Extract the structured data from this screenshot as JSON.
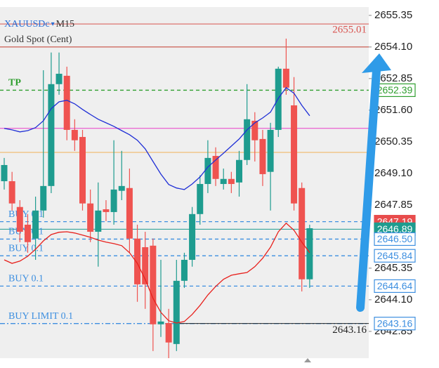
{
  "chart_data": {
    "type": "candlestick",
    "symbol": "XAUUSDc",
    "timeframe": "M15",
    "subtitle": "Gold Spot (Cent)",
    "up_color": "#1e9c8f",
    "down_color": "#ef5350",
    "open": [
      2648.79,
      2648.79,
      2647.77,
      2647.07,
      2646.52,
      2647.63,
      2648.6,
      2652.63,
      2652.96,
      2650.82,
      2650.54,
      2647.91,
      2646.79,
      2647.68,
      2647.57,
      2648.41,
      2648.52,
      2646.52,
      2646.18,
      2646.24,
      2643.13,
      2643.18,
      2642.35,
      2644.85,
      2645.68,
      2647.49,
      2648.68,
      2649.79,
      2648.68,
      2648.88,
      2648.74,
      2649.63,
      2651.18,
      2650.46,
      2649.16,
      2650.82,
      2653.24,
      2651.79,
      2648.52,
      2644.91
    ],
    "high": [
      2649.71,
      2649.16,
      2648.04,
      2647.49,
      2648.18,
      2653.18,
      2653.88,
      2653.88,
      2653.32,
      2651.24,
      2650.82,
      2648.46,
      2648.74,
      2648.04,
      2650.41,
      2649.99,
      2649.29,
      2647.07,
      2646.79,
      2646.52,
      2645.68,
      2643.74,
      2645.68,
      2645.96,
      2647.77,
      2649.02,
      2650.41,
      2650.13,
      2649.29,
      2649.16,
      2649.99,
      2652.63,
      2651.52,
      2650.82,
      2651.1,
      2653.32,
      2654.43,
      2652.91,
      2648.74,
      2647.07
    ],
    "low": [
      2648.46,
      2647.63,
      2646.38,
      2645.96,
      2645.68,
      2647.35,
      2648.32,
      2652.21,
      2650.41,
      2649.99,
      2647.63,
      2646.38,
      2645.41,
      2647.21,
      2647.07,
      2648.04,
      2645.96,
      2644.02,
      2643.74,
      2642.07,
      2642.63,
      2641.79,
      2642.07,
      2644.57,
      2645.41,
      2647.07,
      2648.32,
      2648.6,
      2648.46,
      2648.32,
      2648.18,
      2649.43,
      2649.57,
      2648.6,
      2647.63,
      2650.54,
      2652.21,
      2647.63,
      2644.43,
      2644.57
    ],
    "close": [
      2649.43,
      2647.91,
      2646.79,
      2646.38,
      2647.63,
      2648.6,
      2652.63,
      2653.04,
      2650.82,
      2650.41,
      2647.91,
      2646.79,
      2647.63,
      2647.57,
      2648.46,
      2648.6,
      2646.52,
      2644.71,
      2644.71,
      2643.13,
      2643.24,
      2642.41,
      2644.85,
      2645.68,
      2647.49,
      2648.68,
      2649.71,
      2648.88,
      2648.88,
      2648.68,
      2649.63,
      2651.24,
      2650.41,
      2649.07,
      2650.82,
      2653.24,
      2652.49,
      2647.91,
      2644.91,
      2646.93
    ],
    "series": [
      {
        "color": "#1f2fd6",
        "values": [
          2650.88,
          2650.82,
          2650.74,
          2650.79,
          2650.91,
          2651.18,
          2651.66,
          2651.93,
          2651.99,
          2651.85,
          2651.63,
          2651.43,
          2651.24,
          2651.1,
          2650.96,
          2650.79,
          2650.63,
          2650.41,
          2650.07,
          2649.57,
          2649.07,
          2648.66,
          2648.52,
          2648.46,
          2648.68,
          2648.96,
          2649.35,
          2649.63,
          2649.9,
          2650.18,
          2650.46,
          2650.82,
          2651.1,
          2651.29,
          2651.52,
          2652.07,
          2652.49,
          2652.27,
          2651.79,
          2651.38
        ]
      },
      {
        "color": "#e8201c",
        "values": [
          2645.68,
          2645.54,
          2645.63,
          2645.82,
          2646.1,
          2646.43,
          2646.68,
          2646.77,
          2646.79,
          2646.74,
          2646.66,
          2646.57,
          2646.46,
          2646.38,
          2646.32,
          2646.24,
          2645.96,
          2645.54,
          2644.91,
          2644.16,
          2643.6,
          2643.27,
          2643.18,
          2643.24,
          2643.52,
          2643.88,
          2644.29,
          2644.63,
          2644.91,
          2645.07,
          2645.13,
          2645.18,
          2645.41,
          2645.74,
          2646.18,
          2646.79,
          2647.13,
          2646.85,
          2646.38,
          2645.96
        ]
      }
    ],
    "lines": [
      {
        "value": 2655.01,
        "color": "#d9534f",
        "style": "solid",
        "tag": "text"
      },
      {
        "value": 2654.1,
        "color": "#c0392b",
        "style": "solid"
      },
      {
        "name": "TP",
        "value": 2652.39,
        "color": "#2e9e2e",
        "style": "dashed",
        "tag": "box"
      },
      {
        "value": 2650.88,
        "color": "#e83ec8",
        "style": "solid"
      },
      {
        "value": 2649.93,
        "color": "#f2b257",
        "style": "solid"
      },
      {
        "name": "BUY 0.1",
        "value": 2647.19,
        "color": "#3d8fe0",
        "style": "dashed",
        "tag": "fill",
        "tag_color": "#e84c4c"
      },
      {
        "value": 2646.89,
        "color": "#1e9c8f",
        "style": "solid",
        "tag": "fill",
        "tag_color": "#1e9c8f"
      },
      {
        "name": "BUY 0.1",
        "value": 2646.5,
        "value_label": "2646.50",
        "color": "#3d8fe0",
        "style": "dashed",
        "tag": "box"
      },
      {
        "name": "BUY 0.1",
        "value": 2645.84,
        "color": "#3d8fe0",
        "style": "dashed",
        "tag": "box"
      },
      {
        "name": "BUY 0.1",
        "value": 2644.64,
        "color": "#3d8fe0",
        "style": "dashed",
        "tag": "box"
      },
      {
        "name": "BUY LIMIT 0.1",
        "value": 2643.16,
        "color": "#3d8fe0",
        "style": "dashdot",
        "tag": "box"
      },
      {
        "value": 2643.16,
        "color": "#222222",
        "style": "solid",
        "tag": "text",
        "ray": true
      }
    ],
    "ylim": [
      2641.79,
      2655.68
    ],
    "yticks": [
      2655.35,
      {
        "value": 2654.1,
        "label": "2654.10"
      },
      2652.85,
      {
        "value": 2651.6,
        "label": "2651.60"
      },
      2650.35,
      {
        "value": 2649.1,
        "label": "2649.10"
      },
      2647.85,
      2645.35,
      {
        "value": 2644.1,
        "label": "2644.10"
      },
      2642.85
    ]
  }
}
